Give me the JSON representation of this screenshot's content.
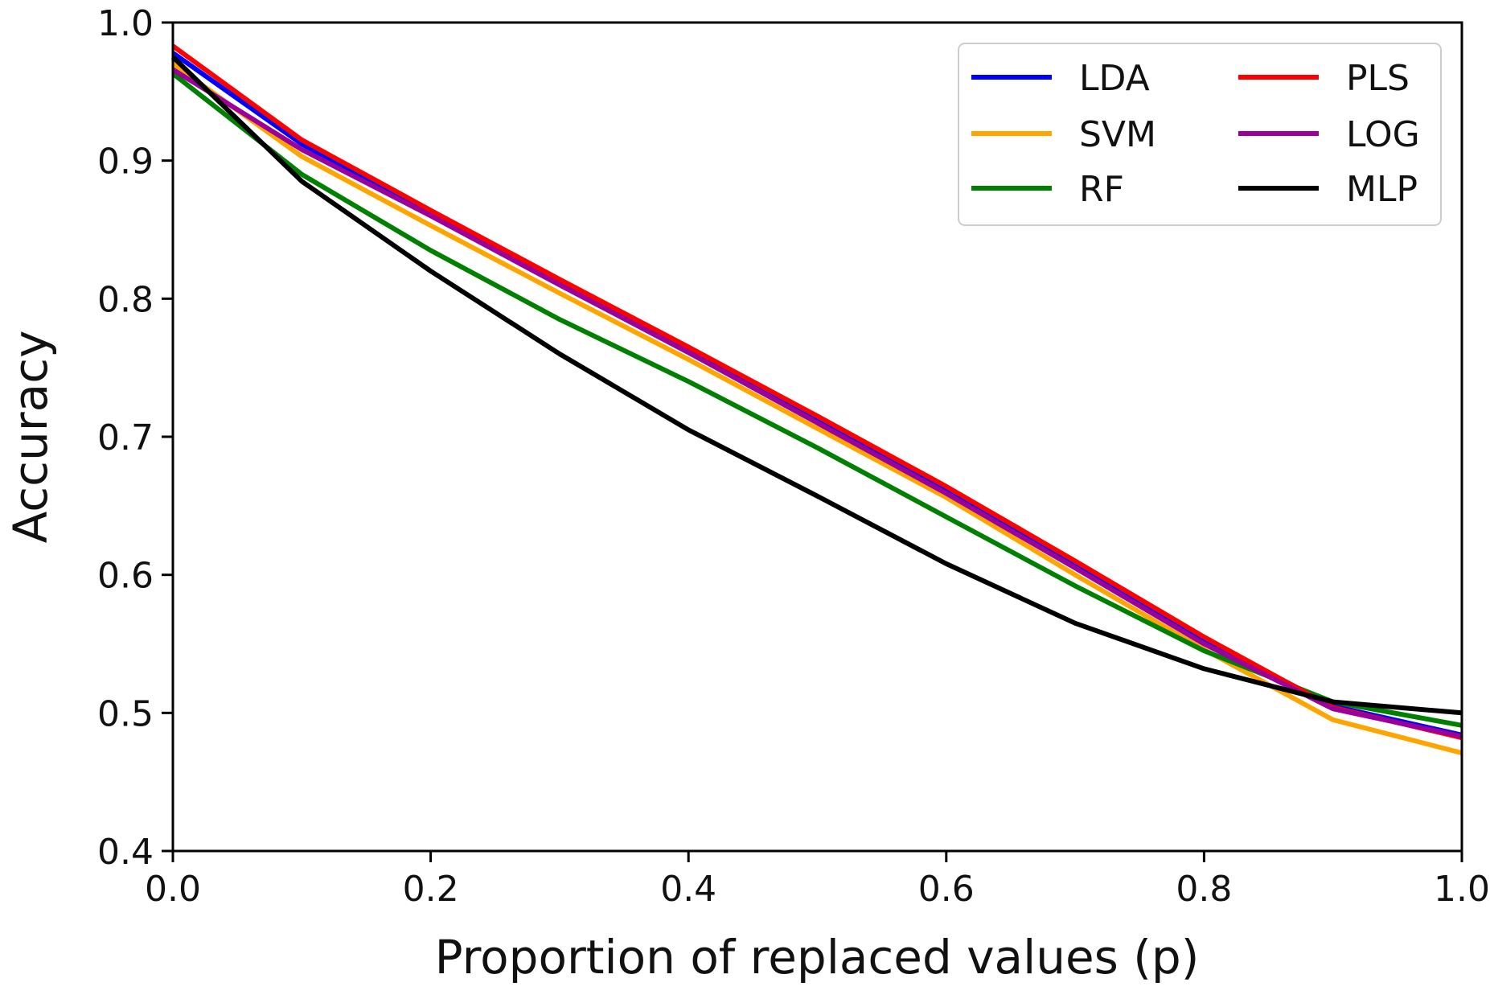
{
  "chart_data": {
    "type": "line",
    "title": "",
    "xlabel": "Proportion of replaced values (p)",
    "ylabel": "Accuracy",
    "xlim": [
      0.0,
      1.0
    ],
    "ylim": [
      0.4,
      1.0
    ],
    "xticks": [
      "0.0",
      "0.2",
      "0.4",
      "0.6",
      "0.8",
      "1.0"
    ],
    "yticks": [
      "0.4",
      "0.5",
      "0.6",
      "0.7",
      "0.8",
      "0.9",
      "1.0"
    ],
    "grid": false,
    "legend_position": "top-right",
    "x": [
      0.0,
      0.1,
      0.2,
      0.3,
      0.4,
      0.5,
      0.6,
      0.7,
      0.8,
      0.9,
      1.0
    ],
    "series": [
      {
        "name": "LDA",
        "color": "#0000ff",
        "values": [
          0.978,
          0.912,
          0.862,
          0.812,
          0.763,
          0.712,
          0.661,
          0.607,
          0.553,
          0.505,
          0.484
        ]
      },
      {
        "name": "SVM",
        "color": "#ffa500",
        "values": [
          0.97,
          0.903,
          0.853,
          0.804,
          0.756,
          0.706,
          0.656,
          0.6,
          0.546,
          0.495,
          0.471
        ]
      },
      {
        "name": "RF",
        "color": "#008000",
        "values": [
          0.963,
          0.89,
          0.835,
          0.785,
          0.74,
          0.692,
          0.642,
          0.592,
          0.545,
          0.508,
          0.491
        ]
      },
      {
        "name": "PLS",
        "color": "#ff0000",
        "values": [
          0.983,
          0.915,
          0.864,
          0.814,
          0.765,
          0.715,
          0.664,
          0.61,
          0.555,
          0.504,
          0.482
        ]
      },
      {
        "name": "LOG",
        "color": "#9b009b",
        "values": [
          0.966,
          0.908,
          0.86,
          0.81,
          0.761,
          0.71,
          0.659,
          0.605,
          0.55,
          0.503,
          0.483
        ]
      },
      {
        "name": "MLP",
        "color": "#000000",
        "values": [
          0.975,
          0.885,
          0.82,
          0.76,
          0.705,
          0.657,
          0.608,
          0.565,
          0.532,
          0.508,
          0.5
        ]
      }
    ]
  }
}
